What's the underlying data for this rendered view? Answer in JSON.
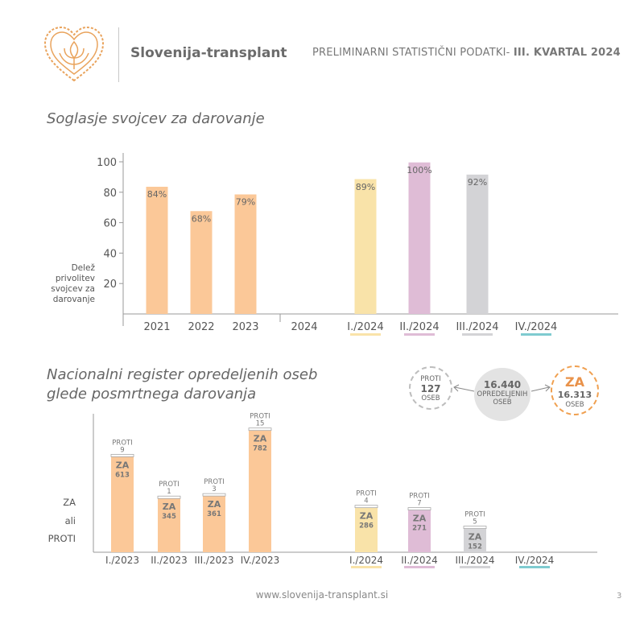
{
  "header": {
    "brand": "Slovenija-transplant",
    "report_title_prefix": "PRELIMINARNI STATISTIČNI PODATKI- ",
    "report_title_bold": "III. KVARTAL 2024"
  },
  "colors": {
    "orange": "#fbc898",
    "yellow": "#f9e3a9",
    "pink": "#dfbcd6",
    "grey": "#d3d3d6",
    "teal": "#7fcbd0",
    "logo": "#e9a35c"
  },
  "chart_data": [
    {
      "type": "bar",
      "title": "Soglasje svojcev za darovanje",
      "ylabel_lines": [
        "Delež",
        "privolitev",
        "svojcev za",
        "darovanje"
      ],
      "ylim": [
        0,
        100
      ],
      "yticks": [
        20,
        40,
        60,
        80,
        100
      ],
      "categories": [
        "2021",
        "2022",
        "2023",
        "2024",
        "I./2024",
        "II./2024",
        "III./2024",
        "IV./2024"
      ],
      "values": [
        84,
        68,
        79,
        null,
        89,
        100,
        92,
        null
      ],
      "labels": [
        "84%",
        "68%",
        "79%",
        "",
        "89%",
        "100%",
        "92%",
        ""
      ],
      "bar_colors": [
        "#fbc898",
        "#fbc898",
        "#fbc898",
        null,
        "#f9e3a9",
        "#dfbcd6",
        "#d3d3d6",
        null
      ],
      "underline_colors": [
        null,
        null,
        null,
        null,
        "#f9e3a9",
        "#dfbcd6",
        "#d3d3d6",
        "#7fcbd0"
      ]
    },
    {
      "type": "bar",
      "title_lines": [
        "Nacionalni register opredeljenih oseb",
        "glede posmrtnega darovanja"
      ],
      "side_label_lines": [
        "ZA",
        "ali",
        "PROTI"
      ],
      "za_label": "ZA",
      "proti_label": "PROTI",
      "categories": [
        "I./2023",
        "II./2023",
        "III./2023",
        "IV./2023",
        "I./2024",
        "II./2024",
        "III./2024",
        "IV./2024"
      ],
      "series": [
        {
          "name": "ZA",
          "values": [
            613,
            345,
            361,
            782,
            286,
            271,
            152,
            null
          ]
        },
        {
          "name": "PROTI",
          "values": [
            9,
            1,
            3,
            15,
            4,
            7,
            5,
            null
          ]
        }
      ],
      "bar_colors": [
        "#fbc898",
        "#fbc898",
        "#fbc898",
        "#fbc898",
        "#f9e3a9",
        "#dfbcd6",
        "#d3d3d6",
        null
      ],
      "underline_colors": [
        null,
        null,
        null,
        null,
        "#f9e3a9",
        "#dfbcd6",
        "#d3d3d6",
        "#7fcbd0"
      ],
      "summary": {
        "proti_label": "PROTI",
        "proti_value": "127",
        "proti_unit": "OSEB",
        "total_value": "16.440",
        "total_label_1": "OPREDELJENIH",
        "total_label_2": "OSEB",
        "za_label": "ZA",
        "za_value": "16.313",
        "za_unit": "OSEB"
      }
    }
  ],
  "footer": {
    "url": "www.slovenija-transplant.si",
    "page_number": "3"
  }
}
